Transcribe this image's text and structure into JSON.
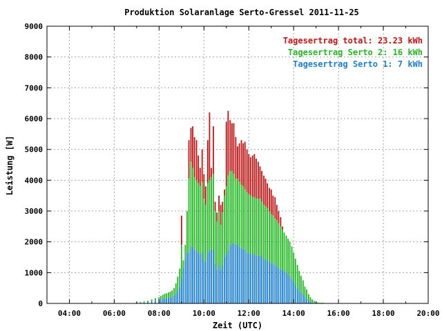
{
  "chart_data": {
    "type": "bar",
    "title": "Produktion Solaranlage Serto-Gressel 2011-11-25",
    "xlabel": "Zeit (UTC)",
    "ylabel": "Leistung [W]",
    "xlim": [
      3.0,
      20.0
    ],
    "ylim": [
      0,
      9000
    ],
    "grid": true,
    "legend_position": "top-right",
    "x_ticks": [
      "04:00",
      "06:00",
      "08:00",
      "10:00",
      "12:00",
      "14:00",
      "16:00",
      "18:00",
      "20:00"
    ],
    "x_tick_values": [
      4,
      6,
      8,
      10,
      12,
      14,
      16,
      18,
      20
    ],
    "y_ticks": [
      0,
      1000,
      2000,
      3000,
      4000,
      5000,
      6000,
      7000,
      8000,
      9000
    ],
    "stacking": "stacked",
    "series": [
      {
        "name": "Tagesertrag Serto 1: 7 kWh",
        "color": "#1a7fd4"
      },
      {
        "name": "Tagesertrag Serto 2: 16 kWh",
        "color": "#1fba1f"
      },
      {
        "name": "Tagesertrag total: 23.23 kWh",
        "color": "#c81010"
      }
    ],
    "x": [
      7.0,
      7.17,
      7.33,
      7.5,
      7.67,
      7.83,
      8.0,
      8.08,
      8.17,
      8.25,
      8.33,
      8.42,
      8.5,
      8.58,
      8.67,
      8.75,
      8.83,
      8.92,
      9.0,
      9.08,
      9.17,
      9.25,
      9.33,
      9.42,
      9.5,
      9.58,
      9.67,
      9.75,
      9.83,
      9.92,
      10.0,
      10.08,
      10.17,
      10.25,
      10.33,
      10.42,
      10.5,
      10.58,
      10.67,
      10.75,
      10.83,
      10.92,
      11.0,
      11.08,
      11.17,
      11.25,
      11.33,
      11.42,
      11.5,
      11.58,
      11.67,
      11.75,
      11.83,
      11.92,
      12.0,
      12.08,
      12.17,
      12.25,
      12.33,
      12.42,
      12.5,
      12.58,
      12.67,
      12.75,
      12.83,
      12.92,
      13.0,
      13.08,
      13.17,
      13.25,
      13.33,
      13.42,
      13.5,
      13.58,
      13.67,
      13.75,
      13.83,
      13.92,
      14.0,
      14.08,
      14.17,
      14.25,
      14.33,
      14.42,
      14.5,
      14.58,
      14.67,
      14.75,
      14.83,
      14.92,
      15.0,
      15.08,
      15.17,
      15.25,
      15.33
    ],
    "serto1": [
      20,
      30,
      40,
      50,
      70,
      90,
      110,
      130,
      150,
      160,
      170,
      180,
      190,
      210,
      250,
      320,
      420,
      550,
      850,
      1150,
      1450,
      1650,
      1650,
      1850,
      1850,
      1750,
      1700,
      1650,
      1600,
      1650,
      1400,
      1350,
      1650,
      1700,
      1750,
      1750,
      1300,
      1100,
      1250,
      1100,
      1250,
      1500,
      1600,
      1700,
      1900,
      1950,
      1950,
      1900,
      1900,
      1850,
      1800,
      1750,
      1750,
      1650,
      1650,
      1600,
      1600,
      1600,
      1550,
      1550,
      1550,
      1500,
      1450,
      1400,
      1400,
      1350,
      1300,
      1300,
      1250,
      1200,
      1150,
      1100,
      1100,
      1050,
      1000,
      950,
      900,
      800,
      700,
      600,
      500,
      400,
      350,
      300,
      200,
      150,
      100,
      50,
      30,
      20,
      20,
      10,
      10,
      10,
      10
    ],
    "serto2": [
      10,
      20,
      30,
      40,
      60,
      80,
      90,
      110,
      130,
      150,
      160,
      180,
      190,
      210,
      250,
      330,
      450,
      580,
      1050,
      250,
      450,
      1350,
      2400,
      2750,
      2550,
      2350,
      2300,
      2250,
      2200,
      2300,
      2000,
      1850,
      2250,
      2300,
      2350,
      2450,
      1700,
      1550,
      1750,
      1450,
      1700,
      2000,
      2200,
      2450,
      2400,
      2350,
      2250,
      2150,
      2150,
      2100,
      2050,
      2050,
      1950,
      1950,
      1900,
      1900,
      1850,
      1850,
      1850,
      1850,
      1850,
      1800,
      1750,
      1750,
      1700,
      1650,
      1600,
      1550,
      1500,
      1500,
      1450,
      1400,
      1300,
      1250,
      1200,
      1150,
      1100,
      1050,
      950,
      850,
      750,
      650,
      550,
      450,
      350,
      300,
      200,
      150,
      100,
      60,
      40,
      20,
      10,
      10,
      10
    ],
    "total": [
      30,
      50,
      70,
      90,
      130,
      170,
      200,
      240,
      280,
      310,
      330,
      360,
      380,
      420,
      500,
      650,
      870,
      1130,
      2850,
      1400,
      1900,
      3000,
      5300,
      5700,
      5750,
      5400,
      5300,
      4800,
      4400,
      5000,
      4200,
      3800,
      5300,
      6200,
      4400,
      5750,
      3300,
      2950,
      3500,
      3200,
      3300,
      3700,
      5900,
      6250,
      5950,
      5850,
      5850,
      5400,
      5100,
      5200,
      5300,
      5200,
      5250,
      5000,
      4850,
      4750,
      4800,
      4850,
      4700,
      4600,
      4450,
      4300,
      4150,
      4050,
      3900,
      3750,
      3700,
      3500,
      3450,
      3200,
      3000,
      2800,
      2500,
      2300,
      2100,
      1900,
      1700,
      1500,
      1300,
      1100,
      900,
      700,
      500,
      350,
      250,
      150,
      100,
      50,
      30,
      20,
      20,
      10,
      10,
      10,
      10
    ]
  }
}
